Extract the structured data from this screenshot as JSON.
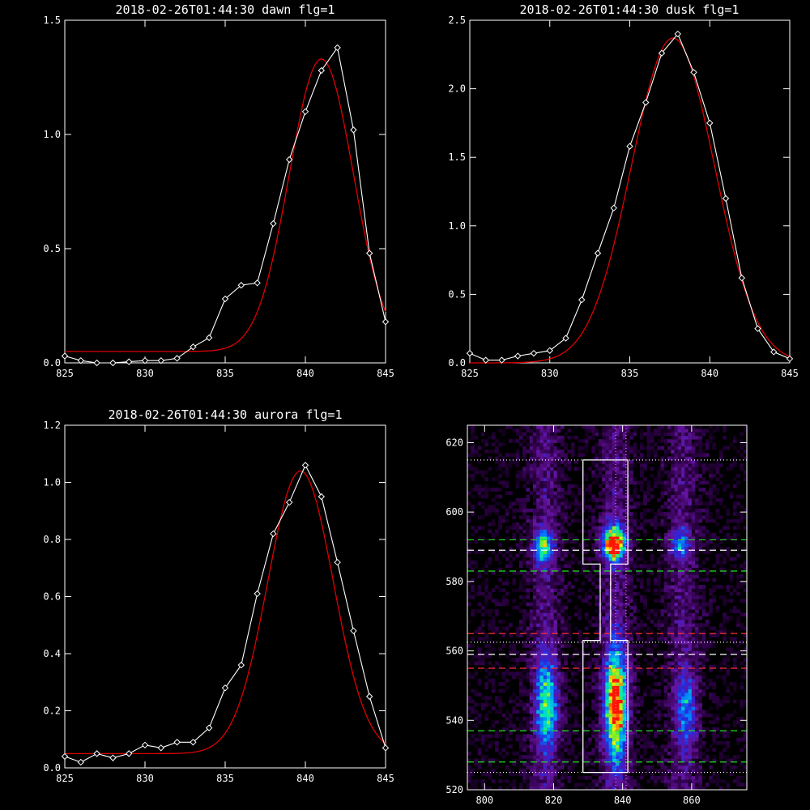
{
  "chart_data": [
    {
      "id": "dawn",
      "type": "line",
      "title": "2018-02-26T01:44:30 dawn flg=1",
      "xlim": [
        825,
        845
      ],
      "ylim": [
        0,
        1.5
      ],
      "xticks": [
        "825",
        "830",
        "835",
        "840",
        "845"
      ],
      "yticks": [
        "0.0",
        "0.5",
        "1.0",
        "1.5"
      ],
      "series": [
        {
          "role": "observed",
          "color": "#ffffff",
          "x": [
            825,
            826,
            827,
            828,
            829,
            830,
            831,
            832,
            833,
            834,
            835,
            836,
            837,
            838,
            839,
            840,
            841,
            842,
            843,
            844,
            845
          ],
          "y": [
            0.03,
            0.01,
            0.0,
            0.0,
            0.005,
            0.01,
            0.01,
            0.02,
            0.07,
            0.11,
            0.28,
            0.34,
            0.35,
            0.61,
            0.89,
            1.1,
            1.28,
            1.38,
            1.02,
            0.48,
            0.18
          ]
        },
        {
          "role": "fit",
          "color": "#e00000",
          "model": {
            "amp": 1.28,
            "center": 841.0,
            "sigma": 2.0,
            "base": 0.05
          }
        }
      ]
    },
    {
      "id": "dusk",
      "type": "line",
      "title": "2018-02-26T01:44:30 dusk flg=1",
      "xlim": [
        825,
        845
      ],
      "ylim": [
        0,
        2.5
      ],
      "xticks": [
        "825",
        "830",
        "835",
        "840",
        "845"
      ],
      "yticks": [
        "0.0",
        "0.5",
        "1.0",
        "1.5",
        "2.0",
        "2.5"
      ],
      "series": [
        {
          "role": "observed",
          "color": "#ffffff",
          "x": [
            825,
            826,
            827,
            828,
            829,
            830,
            831,
            832,
            833,
            834,
            835,
            836,
            837,
            838,
            839,
            840,
            841,
            842,
            843,
            844,
            845
          ],
          "y": [
            0.07,
            0.02,
            0.02,
            0.05,
            0.07,
            0.09,
            0.18,
            0.46,
            0.8,
            1.13,
            1.58,
            1.9,
            2.26,
            2.4,
            2.12,
            1.75,
            1.2,
            0.62,
            0.25,
            0.08,
            0.03
          ]
        },
        {
          "role": "fit",
          "color": "#e00000",
          "model": {
            "amp": 2.37,
            "center": 837.7,
            "sigma": 2.6,
            "base": 0.0
          }
        }
      ]
    },
    {
      "id": "aurora",
      "type": "line",
      "title": "2018-02-26T01:44:30 aurora flg=1",
      "xlim": [
        825,
        845
      ],
      "ylim": [
        0,
        1.2
      ],
      "xticks": [
        "825",
        "830",
        "835",
        "840",
        "845"
      ],
      "yticks": [
        "0.0",
        "0.2",
        "0.4",
        "0.6",
        "0.8",
        "1.0",
        "1.2"
      ],
      "series": [
        {
          "role": "observed",
          "color": "#ffffff",
          "x": [
            825,
            826,
            827,
            828,
            829,
            830,
            831,
            832,
            833,
            834,
            835,
            836,
            837,
            838,
            839,
            840,
            841,
            842,
            843,
            844,
            845
          ],
          "y": [
            0.04,
            0.02,
            0.05,
            0.035,
            0.05,
            0.08,
            0.07,
            0.09,
            0.09,
            0.14,
            0.28,
            0.36,
            0.61,
            0.82,
            0.93,
            1.06,
            0.95,
            0.72,
            0.48,
            0.25,
            0.07
          ]
        },
        {
          "role": "fit",
          "color": "#e00000",
          "model": {
            "amp": 0.99,
            "center": 839.7,
            "sigma": 2.05,
            "base": 0.05
          }
        }
      ]
    },
    {
      "id": "image",
      "type": "heatmap",
      "title": "",
      "xlim": [
        795,
        876
      ],
      "ylim": [
        520,
        625
      ],
      "xticks": [
        "800",
        "820",
        "840",
        "860"
      ],
      "yticks": [
        "520",
        "540",
        "560",
        "580",
        "600",
        "620"
      ],
      "blobs": [
        {
          "x": 817,
          "y": 590,
          "sx": 2.0,
          "sy": 3.5,
          "v": 0.6
        },
        {
          "x": 837.5,
          "y": 591,
          "sx": 2.2,
          "sy": 3.5,
          "v": 1.0
        },
        {
          "x": 856.5,
          "y": 591,
          "sx": 2.0,
          "sy": 3.0,
          "v": 0.4
        },
        {
          "x": 818,
          "y": 545,
          "sx": 2.2,
          "sy": 9.0,
          "v": 0.58
        },
        {
          "x": 838,
          "y": 545,
          "sx": 2.3,
          "sy": 11.0,
          "v": 0.9
        },
        {
          "x": 858.5,
          "y": 543,
          "sx": 2.0,
          "sy": 7.5,
          "v": 0.38
        }
      ],
      "horizontal_lines": [
        {
          "y": 615,
          "color": "#ffffff",
          "style": "dotted"
        },
        {
          "y": 592,
          "color": "#22dd22",
          "style": "dashed"
        },
        {
          "y": 589,
          "color": "#ffffff",
          "style": "dashed"
        },
        {
          "y": 583,
          "color": "#22dd22",
          "style": "dashed"
        },
        {
          "y": 565,
          "color": "#ff3030",
          "style": "dashed"
        },
        {
          "y": 562.5,
          "color": "#ffffff",
          "style": "dotted"
        },
        {
          "y": 559,
          "color": "#ffffff",
          "style": "dashed"
        },
        {
          "y": 555,
          "color": "#ff3030",
          "style": "dashed"
        },
        {
          "y": 537,
          "color": "#22dd22",
          "style": "dashed"
        },
        {
          "y": 528,
          "color": "#22dd22",
          "style": "dashed"
        },
        {
          "y": 525,
          "color": "#ffffff",
          "style": "dotted"
        }
      ],
      "vertical_lines": [
        {
          "x": 838,
          "color": "#ff66ff",
          "style": "dotted"
        },
        {
          "x": 841,
          "color": "#ff66ff",
          "style": "dotted"
        }
      ],
      "outline": {
        "color": "#ffffff",
        "upper_box": {
          "x0": 828.5,
          "x1": 841.5,
          "y0": 585,
          "y1": 615
        },
        "neck": {
          "x0": 833.5,
          "x1": 836.5
        },
        "lower_box": {
          "x0": 828.5,
          "x1": 841.5,
          "y0": 525,
          "y1": 563
        }
      }
    }
  ]
}
